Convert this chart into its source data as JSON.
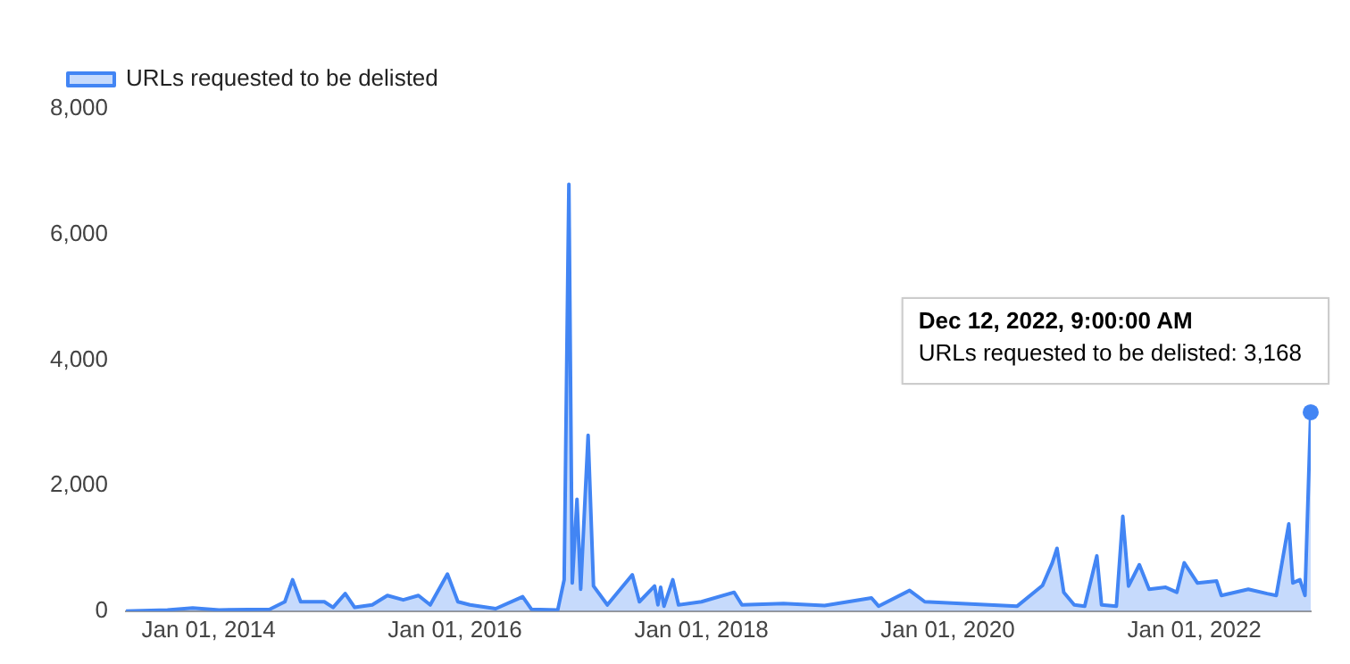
{
  "chart_data": {
    "type": "area",
    "xlim": [
      "2013-05-01",
      "2022-12-12"
    ],
    "xticks": [
      {
        "value": "2014-01-01",
        "label": "Jan 01, 2014"
      },
      {
        "value": "2016-01-01",
        "label": "Jan 01, 2016"
      },
      {
        "value": "2018-01-01",
        "label": "Jan 01, 2018"
      },
      {
        "value": "2020-01-01",
        "label": "Jan 01, 2020"
      },
      {
        "value": "2022-01-01",
        "label": "Jan 01, 2022"
      }
    ],
    "ylim": [
      0,
      8000
    ],
    "yticks": [
      0,
      {
        "value": 2000,
        "label": "2,000"
      },
      {
        "value": 4000,
        "label": "4,000"
      },
      {
        "value": 6000,
        "label": "6,000"
      },
      {
        "value": 8000,
        "label": "8,000"
      }
    ],
    "grid": false,
    "legend": "top left",
    "marker": "none",
    "line_style": "solid",
    "annotations": [
      {
        "text": "Dec 12, 2022, 9:00:00 AM\nURLs requested to be delisted: 3,168",
        "x": "2022-12-12",
        "y": 3168
      }
    ],
    "series": [
      {
        "name": "URLs requested to be delisted",
        "color": "#4285f4",
        "x": [
          "2013-05-01",
          "2013-09-01",
          "2013-11-15",
          "2014-02-01",
          "2014-07-01",
          "2014-08-15",
          "2014-09-07",
          "2014-10-01",
          "2014-12-10",
          "2015-01-05",
          "2015-02-10",
          "2015-03-10",
          "2015-05-01",
          "2015-06-15",
          "2015-08-01",
          "2015-09-15",
          "2015-10-20",
          "2015-12-10",
          "2016-01-10",
          "2016-02-15",
          "2016-05-01",
          "2016-07-20",
          "2016-08-15",
          "2016-11-01",
          "2016-11-20",
          "2016-12-04",
          "2016-12-14",
          "2016-12-28",
          "2017-01-08",
          "2017-01-30",
          "2017-02-15",
          "2017-03-28",
          "2017-06-10",
          "2017-07-01",
          "2017-08-15",
          "2017-08-25",
          "2017-09-02",
          "2017-09-12",
          "2017-10-08",
          "2017-10-25",
          "2018-01-01",
          "2018-04-08",
          "2018-05-01",
          "2018-09-01",
          "2019-01-01",
          "2019-05-20",
          "2019-06-10",
          "2019-09-10",
          "2019-10-25",
          "2020-02-10",
          "2020-07-25",
          "2020-10-08",
          "2020-11-06",
          "2020-11-20",
          "2020-12-10",
          "2021-01-10",
          "2021-02-10",
          "2021-03-18",
          "2021-04-01",
          "2021-05-15",
          "2021-06-03",
          "2021-06-20",
          "2021-07-22",
          "2021-08-20",
          "2021-10-08",
          "2021-11-10",
          "2021-12-02",
          "2022-01-10",
          "2022-03-08",
          "2022-03-22",
          "2022-06-10",
          "2022-08-05",
          "2022-09-01",
          "2022-10-08",
          "2022-10-20",
          "2022-11-10",
          "2022-11-25",
          "2022-12-12"
        ],
        "values": [
          0,
          20,
          50,
          20,
          30,
          150,
          500,
          150,
          150,
          60,
          280,
          60,
          100,
          250,
          180,
          250,
          100,
          590,
          150,
          100,
          40,
          230,
          30,
          20,
          500,
          6800,
          450,
          1780,
          350,
          2800,
          400,
          100,
          580,
          150,
          400,
          100,
          380,
          80,
          500,
          100,
          150,
          300,
          100,
          120,
          90,
          210,
          80,
          330,
          150,
          120,
          80,
          410,
          770,
          1000,
          300,
          100,
          80,
          880,
          100,
          80,
          1510,
          400,
          740,
          350,
          380,
          300,
          770,
          450,
          480,
          250,
          350,
          280,
          250,
          1390,
          450,
          500,
          250,
          3168
        ]
      }
    ]
  }
}
